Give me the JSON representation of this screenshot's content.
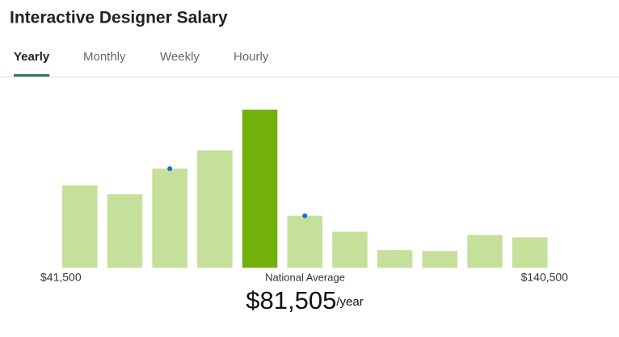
{
  "title": "Interactive Designer Salary",
  "tabs": [
    {
      "label": "Yearly",
      "active": true
    },
    {
      "label": "Monthly",
      "active": false
    },
    {
      "label": "Weekly",
      "active": false
    },
    {
      "label": "Hourly",
      "active": false
    }
  ],
  "chart_data": {
    "type": "bar",
    "categories": [
      null,
      null,
      null,
      null,
      null,
      null,
      null,
      null,
      null,
      null,
      null
    ],
    "values": [
      103,
      92,
      124,
      147,
      198,
      65,
      45,
      22,
      21,
      41,
      38
    ],
    "color": "#c5e09a",
    "highlight_index": 4,
    "highlight_color": "#72b10b",
    "marker_bars": [
      2,
      5
    ],
    "marker_color": "#1a6fcc",
    "ylim": [
      0,
      200
    ],
    "x_min_label": "$41,500",
    "x_max_label": "$140,500",
    "highlight_label": "National Average",
    "average": "$81,505",
    "average_unit": "/year"
  }
}
